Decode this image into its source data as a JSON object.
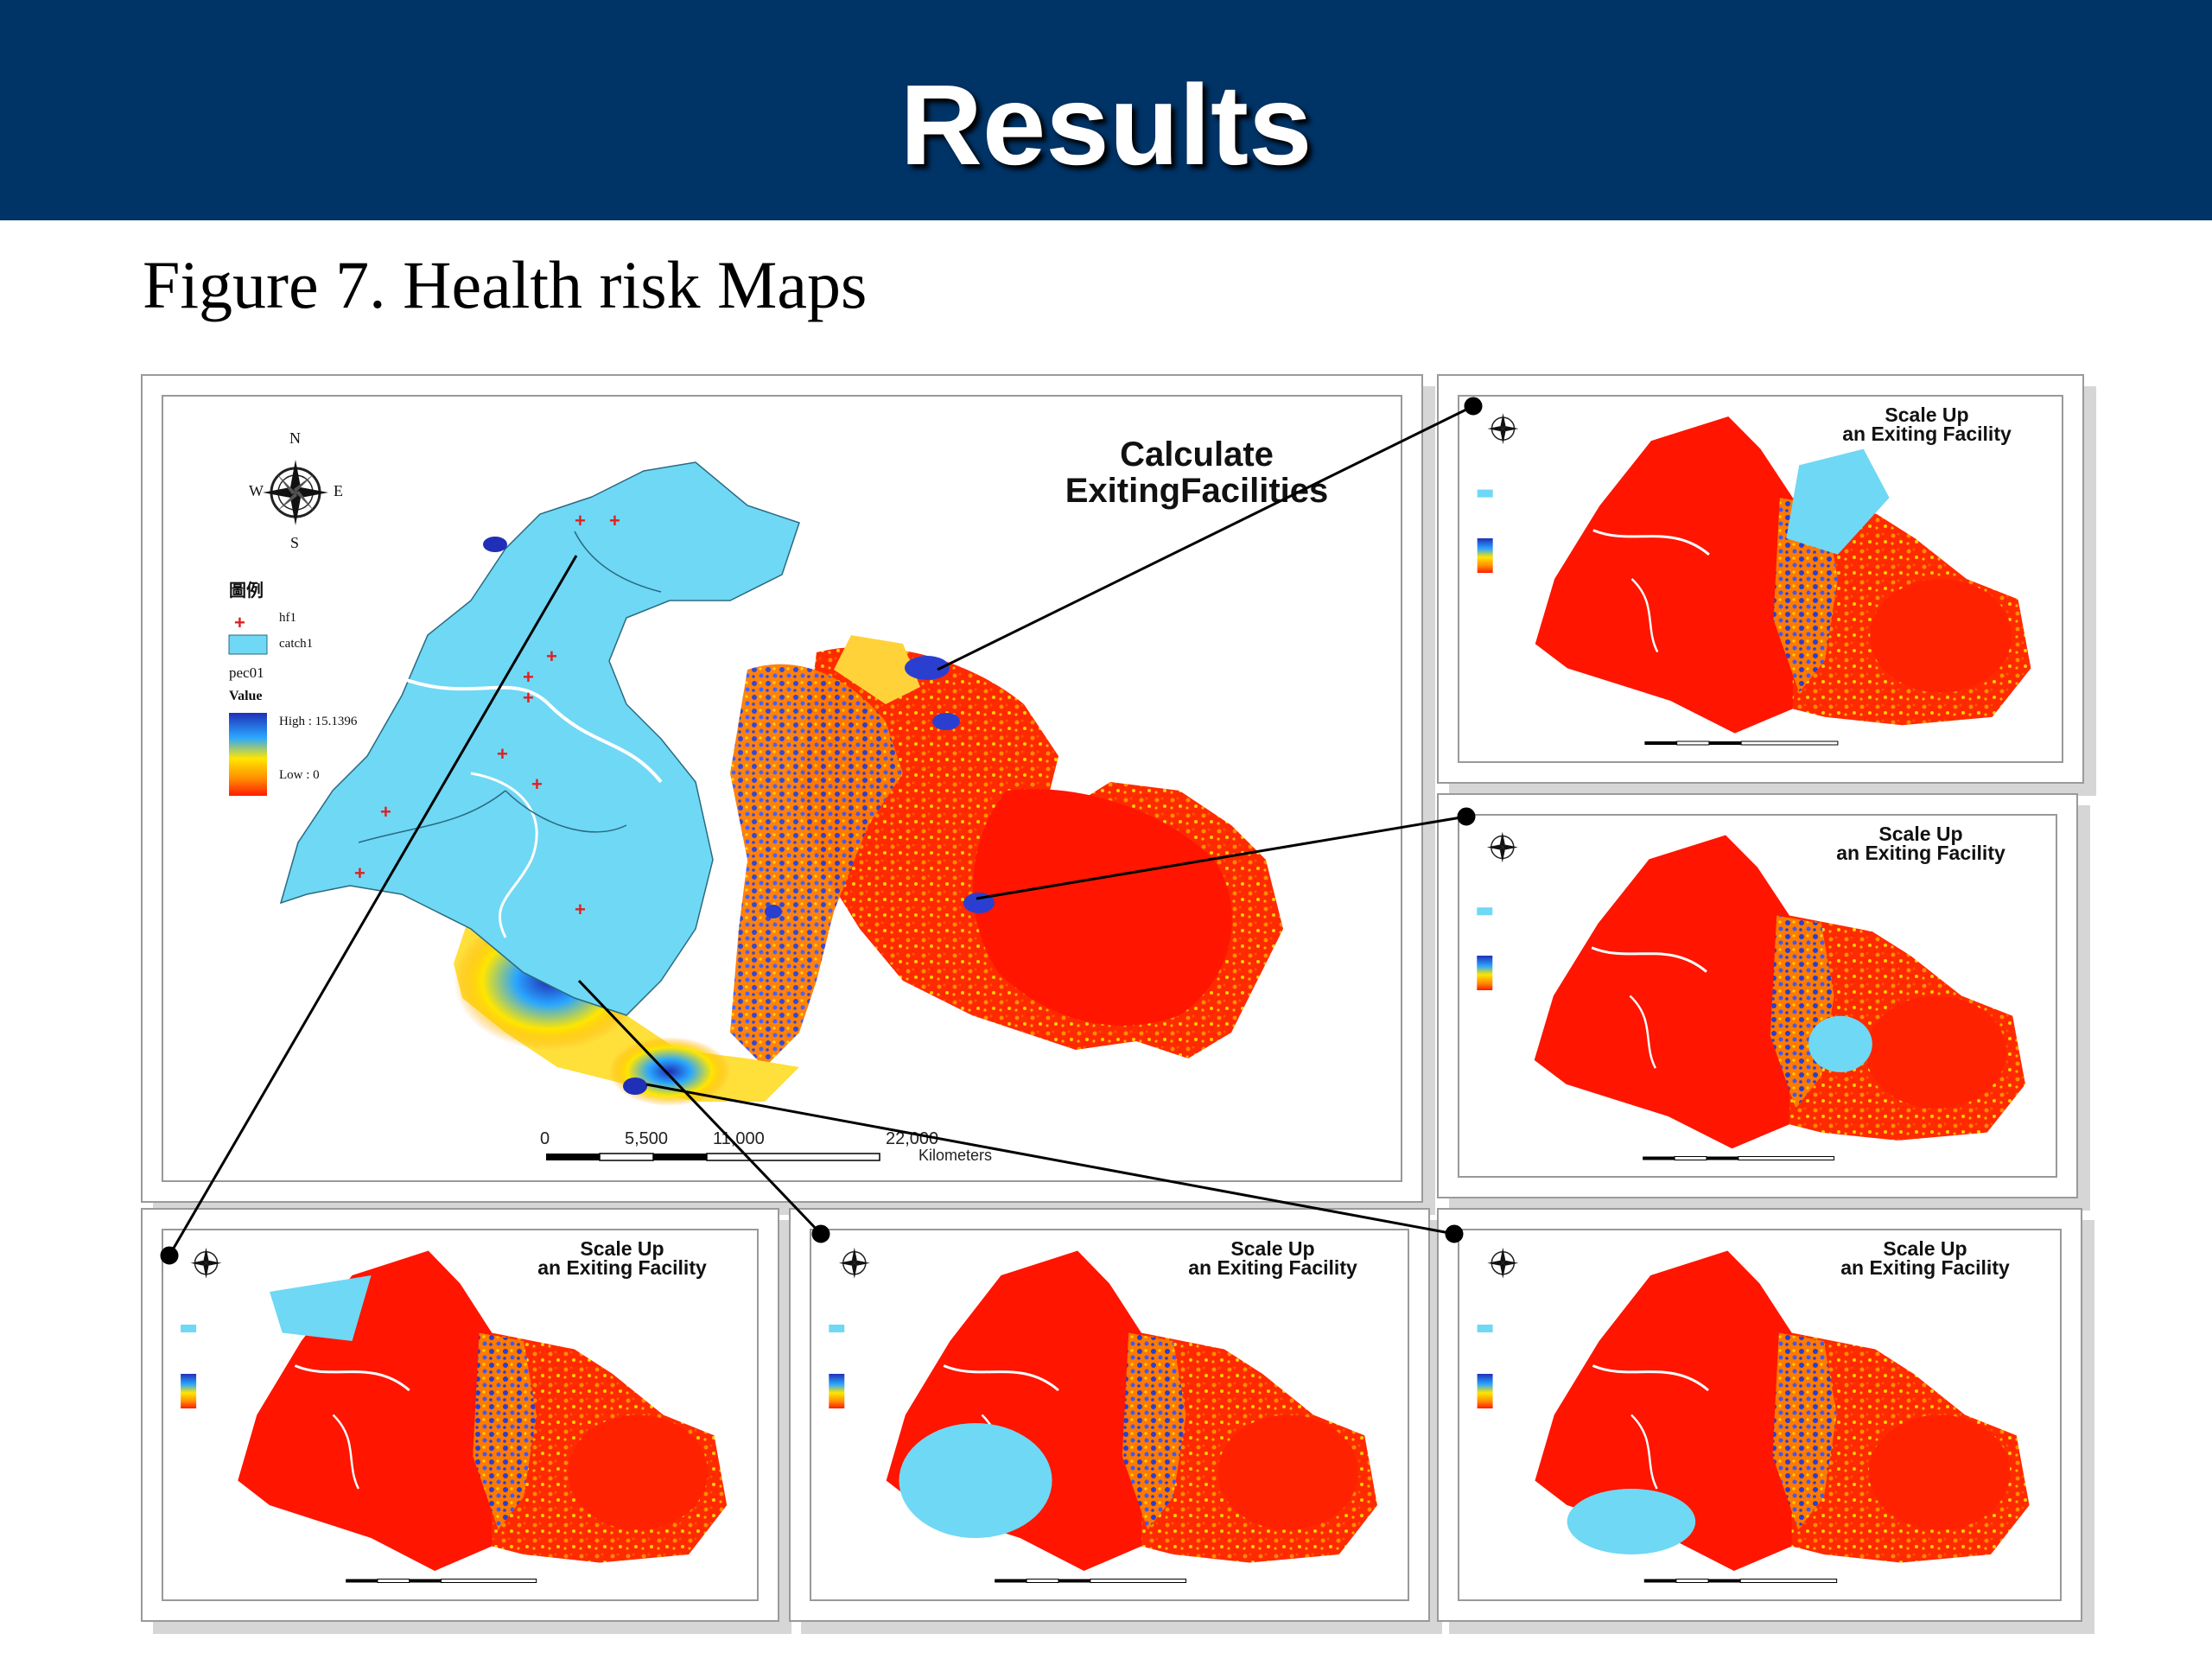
{
  "slide": {
    "title": "Results",
    "subtitle": "Figure 7. Health risk Maps"
  },
  "colors": {
    "header_bg": "#003366",
    "catchment": "#6fd8f4",
    "risk_high": "#1f2fb8",
    "risk_low": "#ff1a00",
    "risk_mid": "#ffcc00",
    "facility_marker": "#e02020"
  },
  "main_map": {
    "title_line1": "Calculate",
    "title_line2": "ExitingFacilities",
    "compass": {
      "n": "N",
      "s": "S",
      "e": "E",
      "w": "W",
      "icon": "compass-rose-icon"
    },
    "legend": {
      "heading": "圖例",
      "facility_label": "hf1",
      "catchment_label": "catch1",
      "raster_label": "pec01",
      "value_label": "Value",
      "high_label": "High : 15.1396",
      "low_label": "Low : 0"
    },
    "scale": {
      "ticks": [
        "0",
        "5,500",
        "11,000",
        "22,000"
      ],
      "unit": "Kilometers"
    }
  },
  "scenario_maps": [
    {
      "id": "top-right",
      "title_line1": "Scale Up",
      "title_line2": "an Exiting Facility"
    },
    {
      "id": "middle-right",
      "title_line1": "Scale Up",
      "title_line2": "an Exiting Facility"
    },
    {
      "id": "bottom-left",
      "title_line1": "Scale Up",
      "title_line2": "an Exiting Facility"
    },
    {
      "id": "bottom-middle",
      "title_line1": "Scale Up",
      "title_line2": "an Exiting Facility"
    },
    {
      "id": "bottom-right",
      "title_line1": "Scale Up",
      "title_line2": "an Exiting Facility"
    }
  ]
}
